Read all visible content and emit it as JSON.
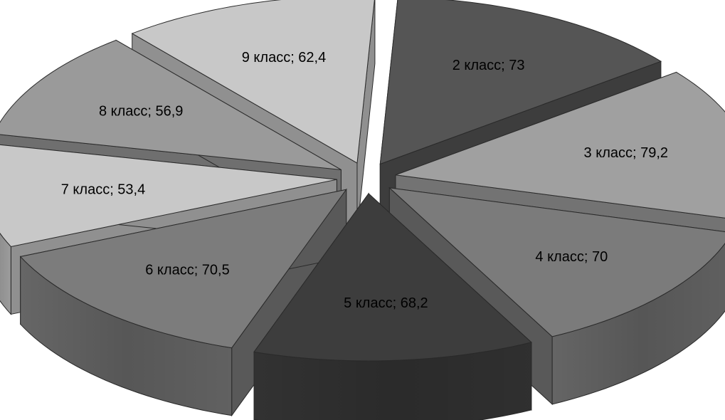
{
  "chart_data": {
    "type": "pie",
    "style": "3d-exploded",
    "categories": [
      "2 класс",
      "3 класс",
      "4 класс",
      "5 класс",
      "6 класс",
      "7 класс",
      "8 класс",
      "9 класс"
    ],
    "values": [
      73,
      79.2,
      70,
      68.2,
      70.5,
      53.4,
      56.9,
      62.4
    ],
    "labels": [
      "2 класс; 73",
      "3 класс; 79,2",
      "4 класс; 70",
      "5 класс; 68,2",
      "6 класс; 70,5",
      "7 класс; 53,4",
      "8 класс; 56,9",
      "9 класс; 62,4"
    ],
    "colors": [
      "#555555",
      "#a0a0a0",
      "#7b7b7b",
      "#3d3d3d",
      "#7c7c7c",
      "#c8c8c8",
      "#9a9a9a",
      "#c8c8c8"
    ],
    "legend": "none"
  }
}
